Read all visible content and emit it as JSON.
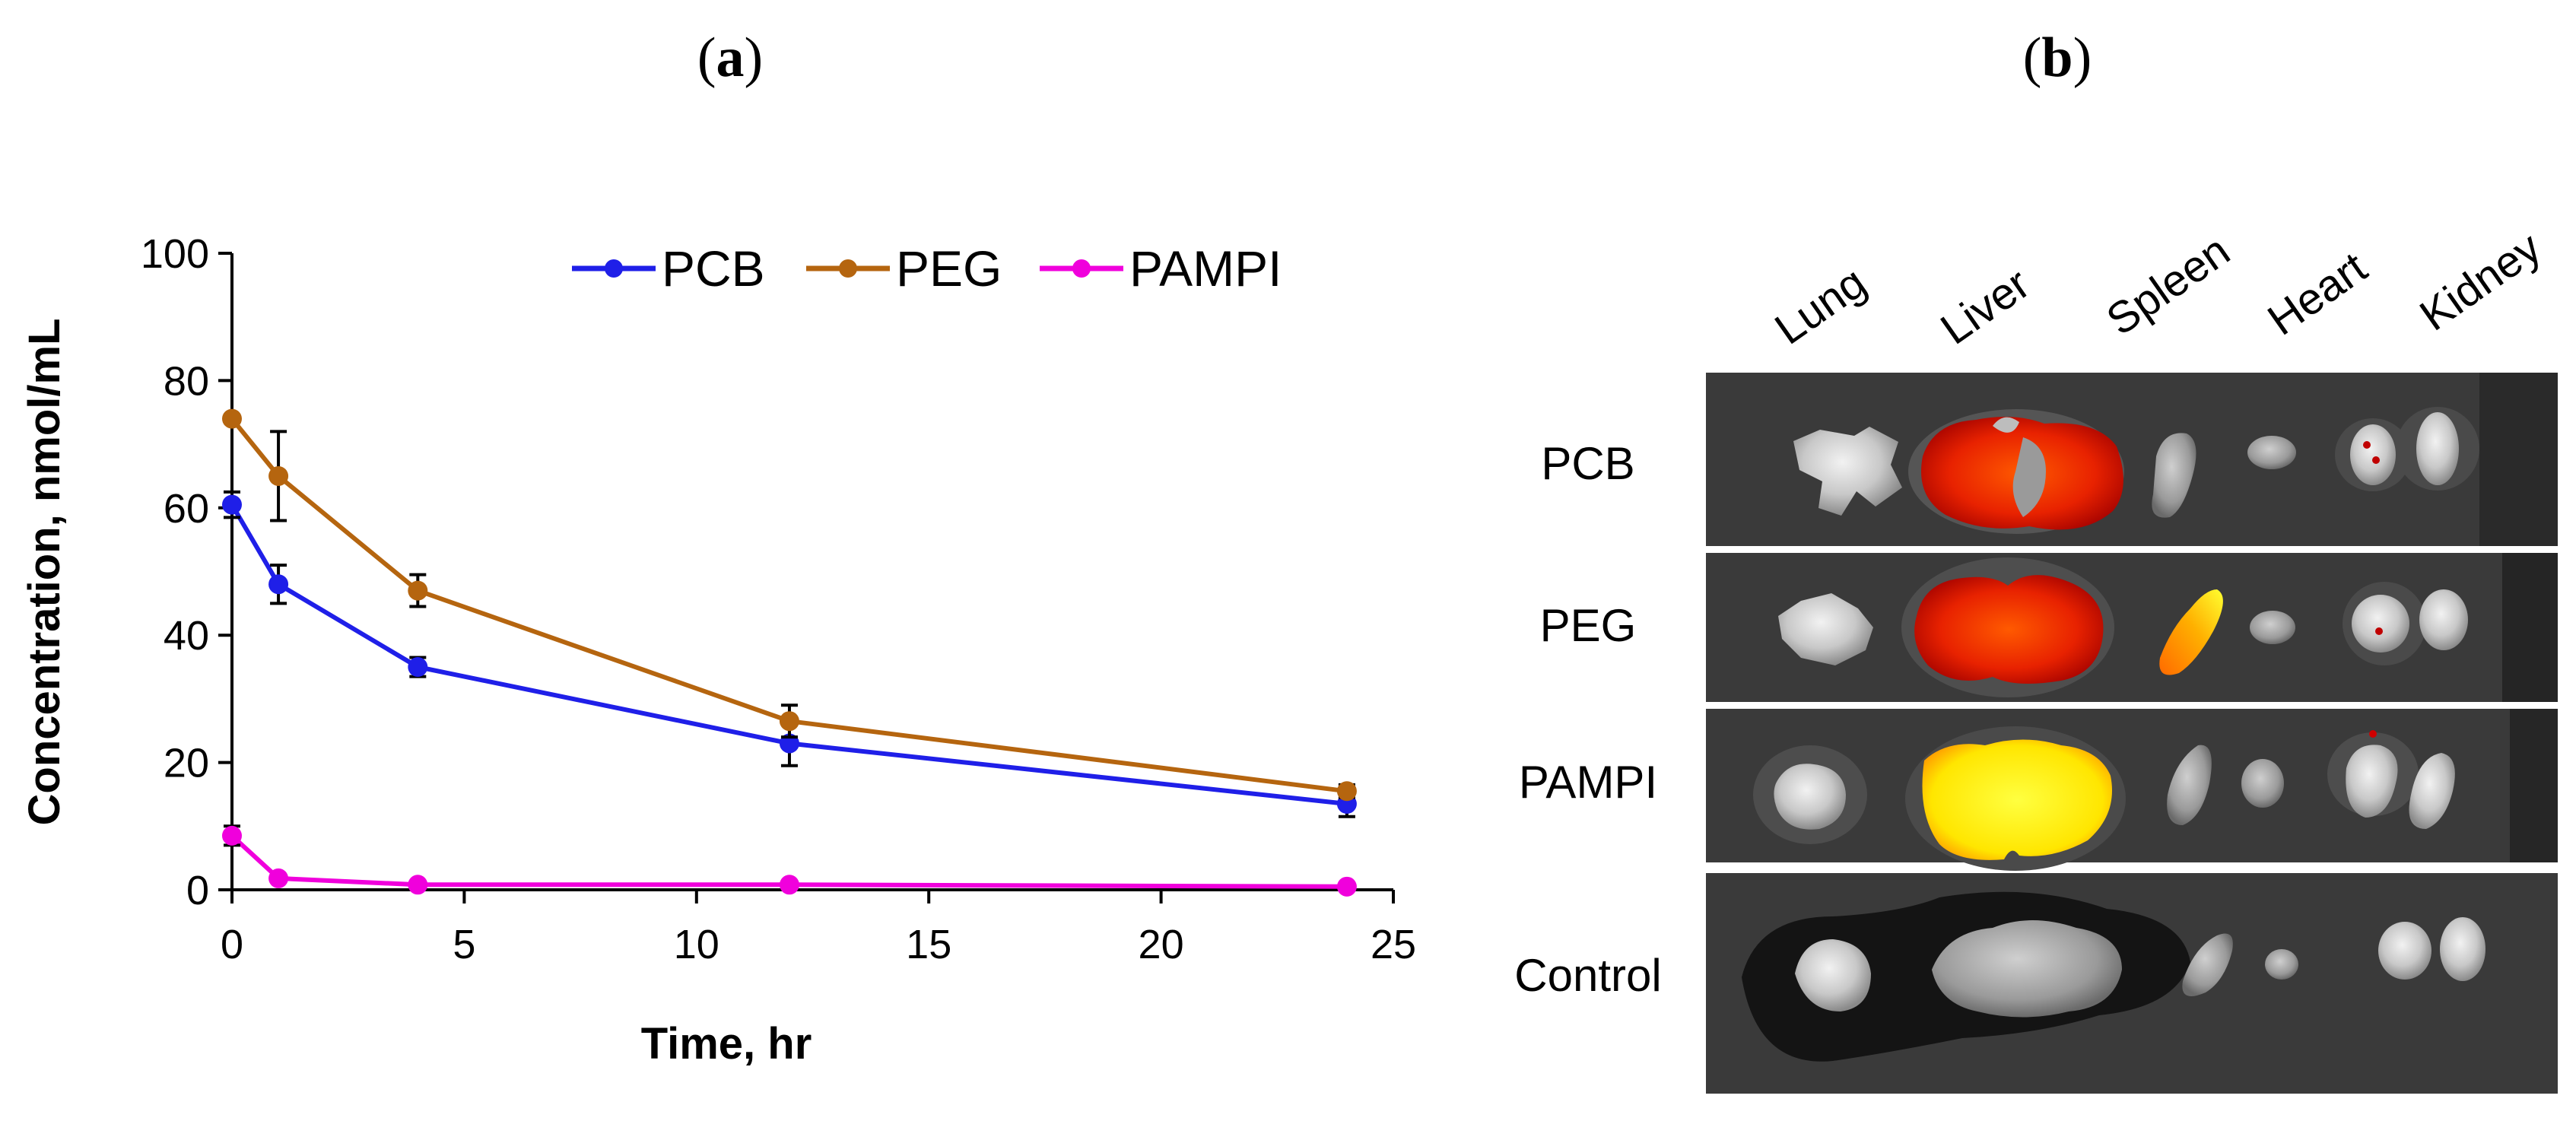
{
  "panels": {
    "a_prefix": "(",
    "a_letter": "a",
    "a_suffix": ")",
    "b_prefix": "(",
    "b_letter": "b",
    "b_suffix": ")"
  },
  "chart_data": {
    "type": "line",
    "title": "",
    "xlabel": "Time, hr",
    "ylabel": "Concentration, nmol/mL",
    "xlim": [
      0,
      25
    ],
    "ylim": [
      0,
      100
    ],
    "x_ticks": [
      0,
      5,
      10,
      15,
      20,
      25
    ],
    "y_ticks": [
      0,
      20,
      40,
      60,
      80,
      100
    ],
    "legend_position": "top",
    "grid": false,
    "series": [
      {
        "name": "PCB",
        "color": "#1f1fe8",
        "x": [
          0,
          1,
          4,
          12,
          24
        ],
        "values": [
          60.5,
          48,
          35,
          23,
          13.5
        ],
        "error": [
          2,
          3,
          1.5,
          3.5,
          2
        ]
      },
      {
        "name": "PEG",
        "color": "#b5650f",
        "x": [
          0,
          1,
          4,
          12,
          24
        ],
        "values": [
          74,
          65,
          47,
          26.5,
          15.5
        ],
        "error": [
          0,
          7,
          2.5,
          2.5,
          1
        ]
      },
      {
        "name": "PAMPI",
        "color": "#f000dc",
        "x": [
          0,
          1,
          4,
          12,
          24
        ],
        "values": [
          8.5,
          1.8,
          0.8,
          0.8,
          0.5
        ],
        "error": [
          1.5,
          0.5,
          0,
          0,
          0
        ]
      }
    ]
  },
  "imaging": {
    "organs": [
      "Lung",
      "Liver",
      "Spleen",
      "Heart",
      "Kidney"
    ],
    "rows": [
      "PCB",
      "PEG",
      "PAMPI",
      "Control"
    ]
  },
  "colors": {
    "signal_red": "#e01a00",
    "signal_orange": "#ff6a00",
    "signal_yellow": "#ffea00",
    "tray_gray": "#3a3a3a",
    "organ_gray": "#b8b8b8"
  }
}
